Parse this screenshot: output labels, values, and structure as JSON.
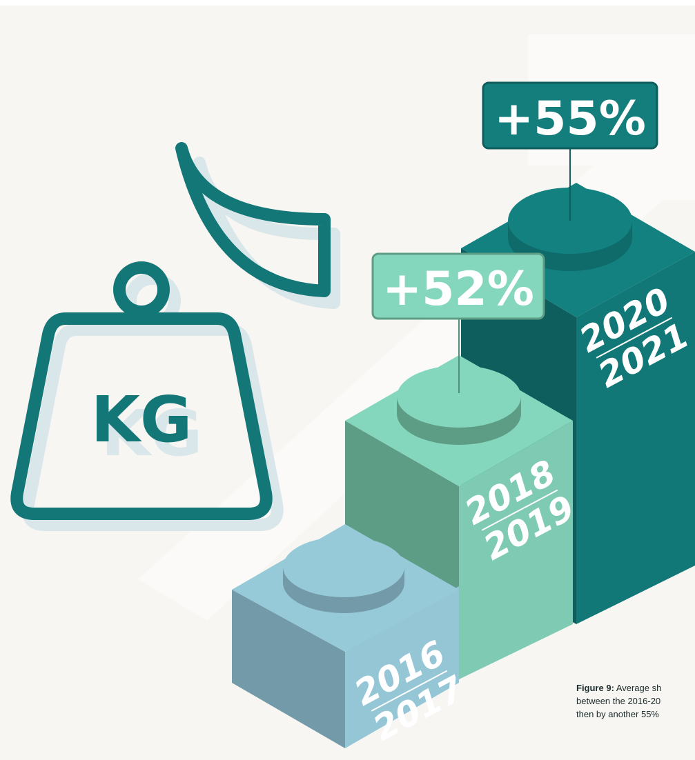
{
  "icon": {
    "label": "KG"
  },
  "blocks": [
    {
      "top": "2016",
      "bottom": "2017"
    },
    {
      "top": "2018",
      "bottom": "2019"
    },
    {
      "top": "2020",
      "bottom": "2021"
    }
  ],
  "callouts": [
    {
      "label": "+52%"
    },
    {
      "label": "+55%"
    }
  ],
  "caption": {
    "label": "Figure 9:",
    "lines": [
      "Average sh",
      "between the 2016-20",
      "then by another 55%"
    ]
  }
}
